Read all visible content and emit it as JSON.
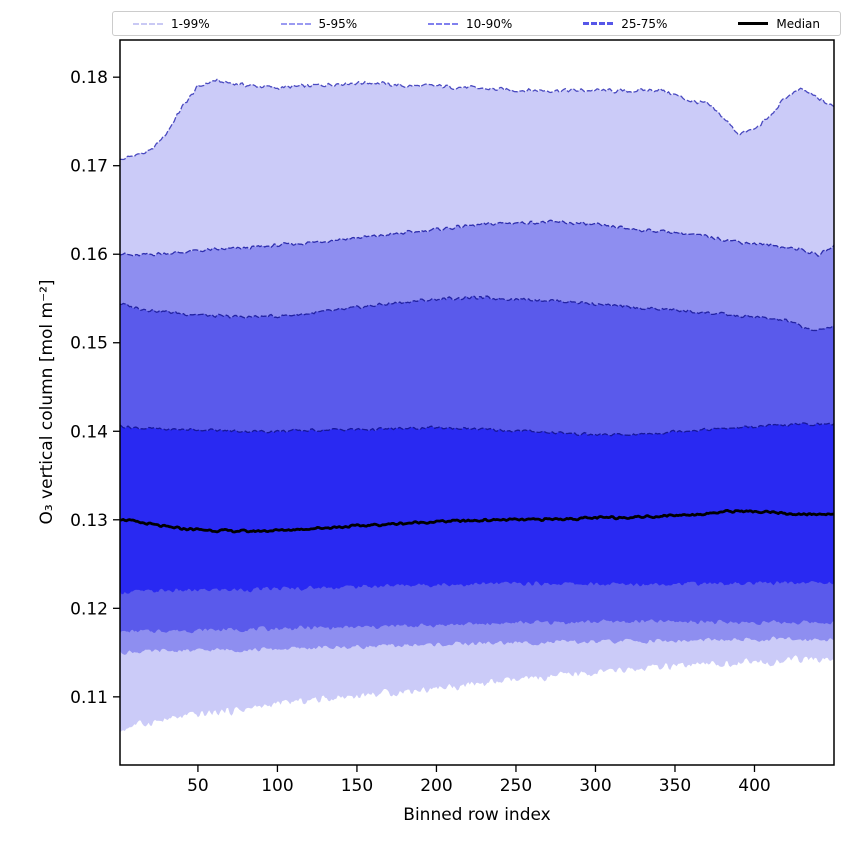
{
  "chart_data": {
    "type": "area",
    "title": "",
    "xlabel": "Binned row index",
    "ylabel": "O₃ vertical column [mol m⁻²]",
    "xlim": [
      1,
      450
    ],
    "ylim": [
      0.1023,
      0.1842
    ],
    "xticks": [
      50,
      100,
      150,
      200,
      250,
      300,
      350,
      400
    ],
    "yticks": [
      0.11,
      0.12,
      0.13,
      0.14,
      0.15,
      0.16,
      0.17,
      0.18
    ],
    "grid": false,
    "legend_position": "top, expanded, outside plot",
    "x": [
      1,
      10,
      20,
      30,
      40,
      50,
      60,
      80,
      100,
      120,
      140,
      160,
      180,
      200,
      220,
      240,
      260,
      280,
      300,
      320,
      340,
      350,
      360,
      370,
      380,
      390,
      400,
      410,
      420,
      430,
      440,
      450
    ],
    "percentiles": {
      "p99": [
        0.1706,
        0.1712,
        0.1716,
        0.1736,
        0.1766,
        0.1789,
        0.1796,
        0.1791,
        0.1788,
        0.179,
        0.1793,
        0.1794,
        0.179,
        0.179,
        0.1788,
        0.1786,
        0.1785,
        0.1785,
        0.1785,
        0.1784,
        0.1786,
        0.178,
        0.1773,
        0.177,
        0.1755,
        0.1736,
        0.1741,
        0.1756,
        0.1778,
        0.1786,
        0.1776,
        0.1766
      ],
      "p95": [
        0.1601,
        0.1598,
        0.16,
        0.1601,
        0.1602,
        0.1604,
        0.1605,
        0.1607,
        0.161,
        0.1613,
        0.1617,
        0.162,
        0.1624,
        0.1628,
        0.1632,
        0.1635,
        0.1636,
        0.1636,
        0.1633,
        0.1629,
        0.1626,
        0.1625,
        0.1622,
        0.162,
        0.1617,
        0.1614,
        0.1612,
        0.161,
        0.1608,
        0.1605,
        0.1599,
        0.1609
      ],
      "p90": [
        0.1544,
        0.154,
        0.1537,
        0.1535,
        0.1533,
        0.1532,
        0.153,
        0.1529,
        0.153,
        0.1533,
        0.1537,
        0.1542,
        0.1546,
        0.1549,
        0.1551,
        0.155,
        0.1549,
        0.1547,
        0.1544,
        0.154,
        0.1538,
        0.1537,
        0.1535,
        0.1534,
        0.1532,
        0.153,
        0.1529,
        0.1527,
        0.1525,
        0.1518,
        0.1513,
        0.152
      ],
      "p75": [
        0.1406,
        0.1404,
        0.1403,
        0.1402,
        0.1402,
        0.1402,
        0.1401,
        0.14,
        0.14,
        0.1401,
        0.1402,
        0.1402,
        0.1403,
        0.1404,
        0.1403,
        0.1401,
        0.14,
        0.1398,
        0.1396,
        0.1396,
        0.1398,
        0.14,
        0.1401,
        0.1402,
        0.1403,
        0.1404,
        0.1405,
        0.1406,
        0.1407,
        0.1408,
        0.1408,
        0.1408
      ],
      "median": [
        0.1301,
        0.1298,
        0.1295,
        0.1292,
        0.129,
        0.1289,
        0.1288,
        0.1287,
        0.1288,
        0.129,
        0.1292,
        0.1294,
        0.1296,
        0.1298,
        0.1299,
        0.13,
        0.13,
        0.1301,
        0.1302,
        0.1303,
        0.1304,
        0.1305,
        0.1306,
        0.1307,
        0.1309,
        0.131,
        0.1309,
        0.1308,
        0.1307,
        0.1306,
        0.1306,
        0.1307
      ],
      "p25": [
        0.1218,
        0.1219,
        0.1219,
        0.122,
        0.122,
        0.122,
        0.1221,
        0.1221,
        0.1222,
        0.1223,
        0.1224,
        0.1225,
        0.1226,
        0.1227,
        0.1227,
        0.1228,
        0.1228,
        0.1228,
        0.1227,
        0.1227,
        0.1228,
        0.1228,
        0.1228,
        0.1228,
        0.1228,
        0.1228,
        0.1228,
        0.1228,
        0.1229,
        0.1229,
        0.1229,
        0.1229
      ],
      "p10": [
        0.1173,
        0.1174,
        0.1174,
        0.1175,
        0.1175,
        0.1175,
        0.1176,
        0.1176,
        0.1177,
        0.1178,
        0.1178,
        0.1179,
        0.118,
        0.1181,
        0.1182,
        0.1183,
        0.1184,
        0.1184,
        0.1185,
        0.1185,
        0.1185,
        0.1185,
        0.1185,
        0.1185,
        0.1184,
        0.1184,
        0.1184,
        0.1184,
        0.1184,
        0.1184,
        0.1184,
        0.1184
      ],
      "p05": [
        0.115,
        0.1151,
        0.1151,
        0.1152,
        0.1152,
        0.1152,
        0.1153,
        0.1153,
        0.1154,
        0.1155,
        0.1156,
        0.1157,
        0.1158,
        0.1159,
        0.116,
        0.1161,
        0.1161,
        0.1162,
        0.1162,
        0.1163,
        0.1163,
        0.1163,
        0.1163,
        0.1164,
        0.1164,
        0.1164,
        0.1164,
        0.1165,
        0.1165,
        0.1165,
        0.1165,
        0.1165
      ],
      "p01": [
        0.1062,
        0.1068,
        0.1071,
        0.1074,
        0.1077,
        0.108,
        0.1082,
        0.1086,
        0.1092,
        0.1096,
        0.11,
        0.1103,
        0.1106,
        0.111,
        0.1113,
        0.1117,
        0.112,
        0.1124,
        0.1127,
        0.113,
        0.1133,
        0.1134,
        0.1135,
        0.1136,
        0.1137,
        0.1138,
        0.1139,
        0.114,
        0.1141,
        0.1142,
        0.1142,
        0.1143
      ]
    },
    "noise_amplitude": {
      "p99": 0.00045,
      "p95": 0.00038,
      "p90": 0.00038,
      "p75": 0.00032,
      "median": 0.00026,
      "p25": 0.0005,
      "p10": 0.0005,
      "p05": 0.0005,
      "p01": 0.00085
    },
    "bands": [
      {
        "label": "1-99%",
        "upper": "p99",
        "lower": "p01",
        "fill": "#cbcbf8",
        "line": "#4a4ac0"
      },
      {
        "label": "5-95%",
        "upper": "p95",
        "lower": "p05",
        "fill": "#8e8ef0",
        "line": "#2e2eae"
      },
      {
        "label": "10-90%",
        "upper": "p90",
        "lower": "p10",
        "fill": "#5a5aeb",
        "line": "#2222a2"
      },
      {
        "label": "25-75%",
        "upper": "p75",
        "lower": "p25",
        "fill": "#2929f2",
        "line": "#17179a"
      }
    ],
    "median_line": {
      "color": "#000000",
      "width": 2.8
    },
    "legend": [
      {
        "label": "1-99%",
        "color": "#c9c9f4",
        "style": "dashed",
        "weight": 2
      },
      {
        "label": "5-95%",
        "color": "#9a9af1",
        "style": "dashed",
        "weight": 2
      },
      {
        "label": "10-90%",
        "color": "#8080ee",
        "style": "dashed",
        "weight": 2
      },
      {
        "label": "25-75%",
        "color": "#5656e8",
        "style": "dashed",
        "weight": 3
      },
      {
        "label": "Median",
        "color": "#000000",
        "style": "solid",
        "weight": 3
      }
    ],
    "axis_color": "#000000",
    "tick_font_px": 17,
    "label_font_px": 17
  }
}
